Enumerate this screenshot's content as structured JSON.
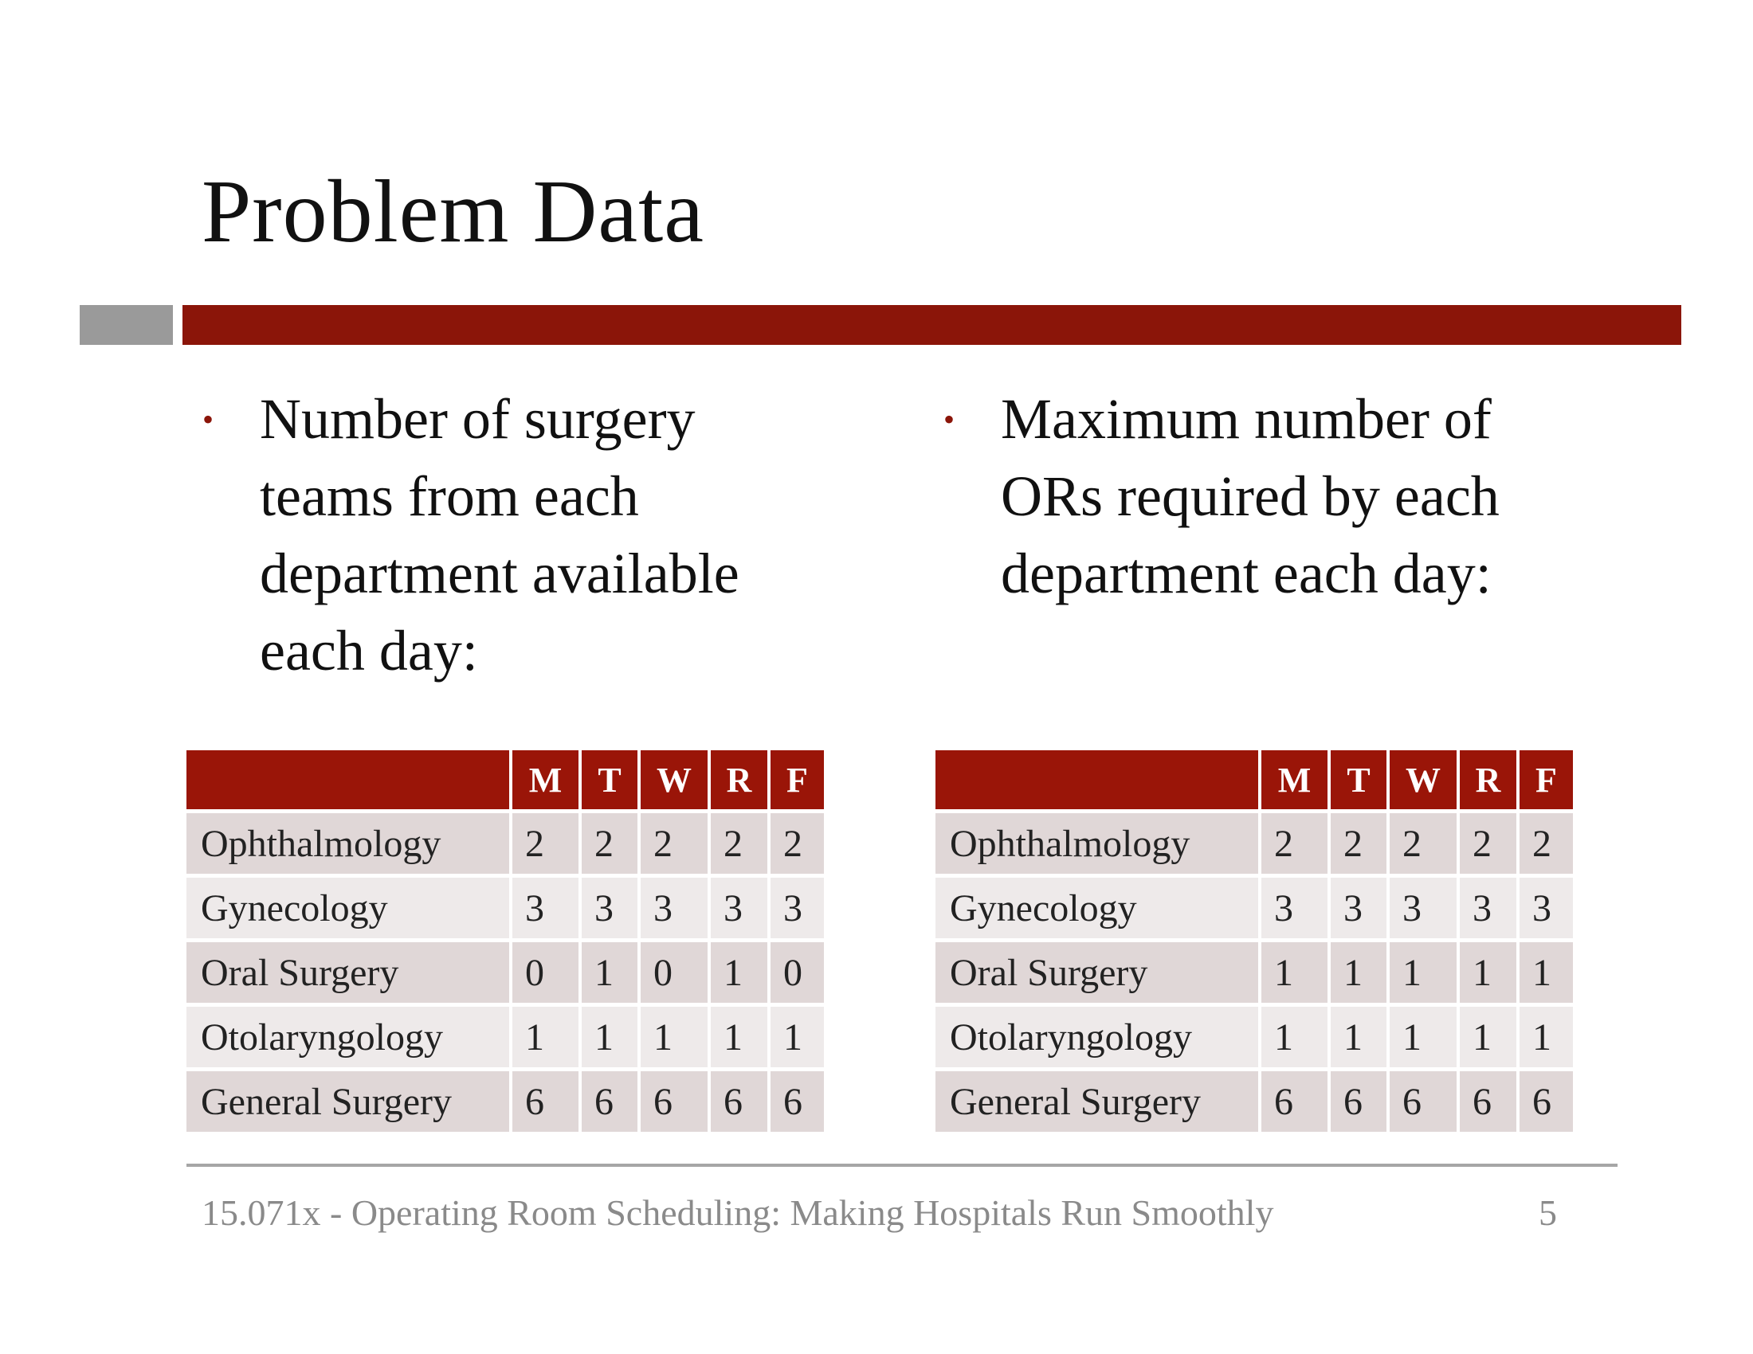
{
  "slide": {
    "title": "Problem Data",
    "bullets": {
      "left": "Number of  surgery teams from each department available each day:",
      "right": "Maximum number of ORs required by each department each day:"
    }
  },
  "tables": {
    "teams": {
      "columns": [
        "M",
        "T",
        "W",
        "R",
        "F"
      ],
      "rows": [
        {
          "department": "Ophthalmology",
          "values": [
            "2",
            "2",
            "2",
            "2",
            "2"
          ]
        },
        {
          "department": "Gynecology",
          "values": [
            "3",
            "3",
            "3",
            "3",
            "3"
          ]
        },
        {
          "department": "Oral Surgery",
          "values": [
            "0",
            "1",
            "0",
            "1",
            "0"
          ]
        },
        {
          "department": "Otolaryngology",
          "values": [
            "1",
            "1",
            "1",
            "1",
            "1"
          ]
        },
        {
          "department": "General Surgery",
          "values": [
            "6",
            "6",
            "6",
            "6",
            "6"
          ]
        }
      ]
    },
    "ors": {
      "columns": [
        "M",
        "T",
        "W",
        "R",
        "F"
      ],
      "rows": [
        {
          "department": "Ophthalmology",
          "values": [
            "2",
            "2",
            "2",
            "2",
            "2"
          ]
        },
        {
          "department": "Gynecology",
          "values": [
            "3",
            "3",
            "3",
            "3",
            "3"
          ]
        },
        {
          "department": "Oral Surgery",
          "values": [
            "1",
            "1",
            "1",
            "1",
            "1"
          ]
        },
        {
          "department": "Otolaryngology",
          "values": [
            "1",
            "1",
            "1",
            "1",
            "1"
          ]
        },
        {
          "department": "General Surgery",
          "values": [
            "6",
            "6",
            "6",
            "6",
            "6"
          ]
        }
      ]
    }
  },
  "footer": {
    "text": "15.071x - Operating Room Scheduling: Making Hospitals Run Smoothly",
    "page": "5"
  },
  "colors": {
    "accent": "#8b1509",
    "header_fill": "#9a1508",
    "row_odd": "#e0d7d7",
    "row_even": "#eeeaea",
    "gray_bar": "#9a9a9a"
  }
}
